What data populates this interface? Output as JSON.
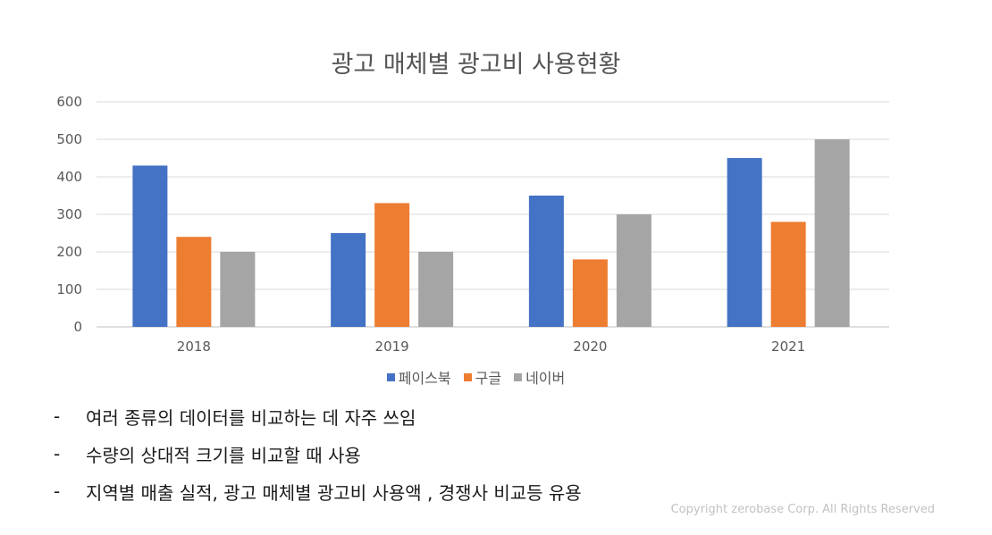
{
  "chart_data": {
    "type": "bar",
    "title": "광고 매체별 광고비 사용현황",
    "categories": [
      "2018",
      "2019",
      "2020",
      "2021"
    ],
    "series": [
      {
        "name": "페이스북",
        "color": "#4472c4",
        "values": [
          430,
          250,
          350,
          450
        ]
      },
      {
        "name": "구글",
        "color": "#ed7d31",
        "values": [
          240,
          330,
          180,
          280
        ]
      },
      {
        "name": "네이버",
        "color": "#a5a5a5",
        "values": [
          200,
          200,
          300,
          500
        ]
      }
    ],
    "ylim": [
      0,
      600
    ],
    "yticks": [
      "0",
      "100",
      "200",
      "300",
      "400",
      "500",
      "600"
    ],
    "grid": true,
    "legend": "bottom"
  },
  "bullets": [
    {
      "dash": "-",
      "text": "여러 종류의 데이터를 비교하는 데 자주 쓰임"
    },
    {
      "dash": "-",
      "text": "수량의 상대적 크기를 비교할 때 사용"
    },
    {
      "dash": "-",
      "text": "지역별 매출 실적, 광고 매체별 광고비 사용액 , 경쟁사 비교등 유용"
    }
  ],
  "copyright": "Copyright zerobase Corp. All Rights Reserved"
}
